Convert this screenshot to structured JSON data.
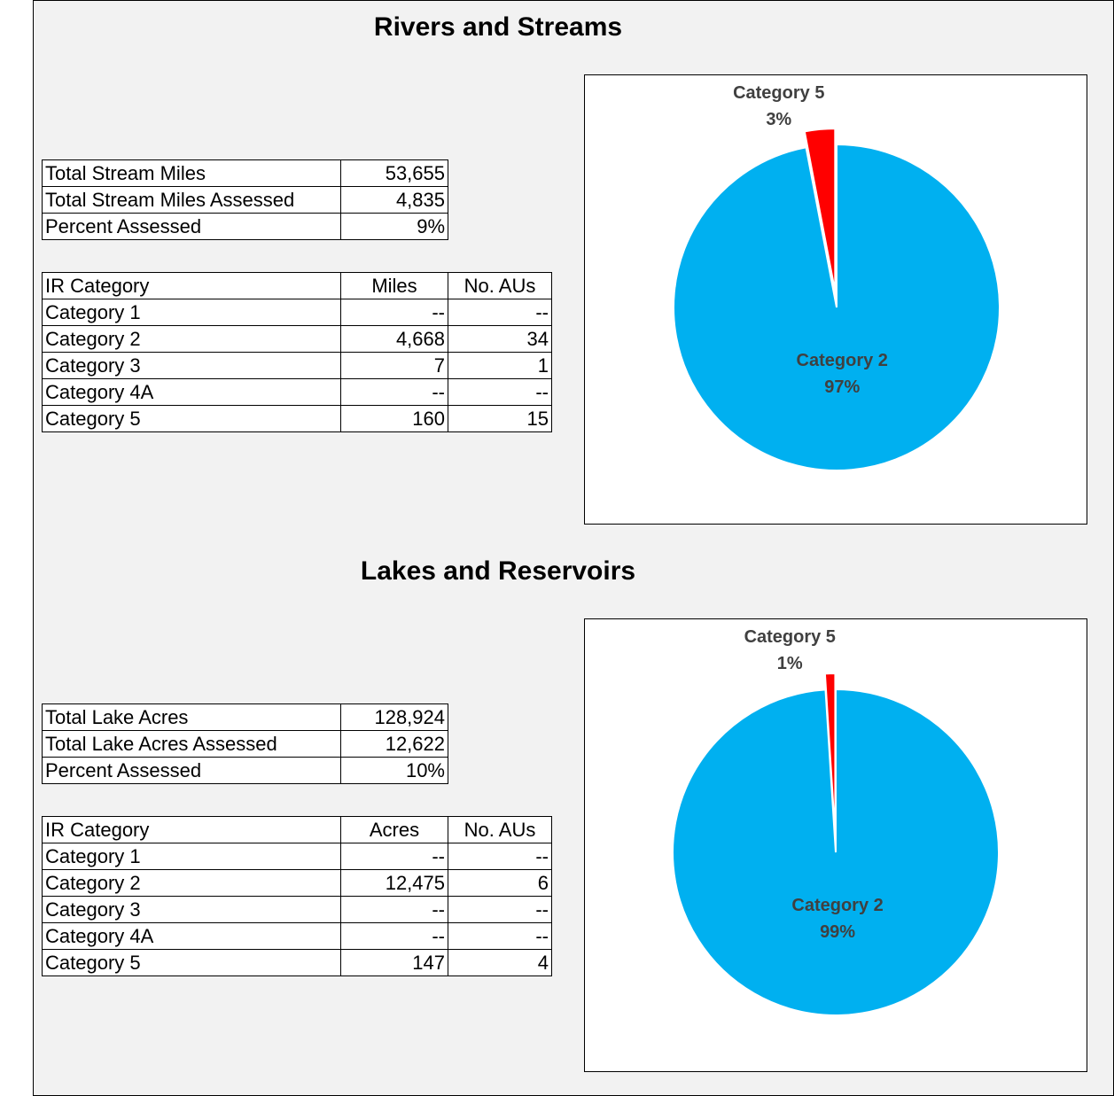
{
  "sections": [
    {
      "title": "Rivers and Streams",
      "summary": [
        [
          "Total Stream Miles",
          "53,655"
        ],
        [
          "Total Stream Miles Assessed",
          "4,835"
        ],
        [
          "Percent Assessed",
          "9%"
        ]
      ],
      "table": {
        "header": [
          "IR Category",
          "Miles",
          "No. AUs"
        ],
        "rows": [
          [
            "Category 1",
            "--",
            "--"
          ],
          [
            "Category 2",
            "4,668",
            "34"
          ],
          [
            "Category 3",
            "7",
            "1"
          ],
          [
            "Category 4A",
            "--",
            "--"
          ],
          [
            "Category 5",
            "160",
            "15"
          ]
        ]
      }
    },
    {
      "title": "Lakes and Reservoirs",
      "summary": [
        [
          "Total Lake Acres",
          "128,924"
        ],
        [
          "Total Lake Acres Assessed",
          "12,622"
        ],
        [
          "Percent Assessed",
          "10%"
        ]
      ],
      "table": {
        "header": [
          "IR Category",
          "Acres",
          "No. AUs"
        ],
        "rows": [
          [
            "Category 1",
            "--",
            "--"
          ],
          [
            "Category 2",
            "12,475",
            "6"
          ],
          [
            "Category 3",
            "--",
            "--"
          ],
          [
            "Category 4A",
            "--",
            "--"
          ],
          [
            "Category 5",
            "147",
            "4"
          ]
        ]
      }
    }
  ],
  "chart_data": [
    {
      "type": "pie",
      "categories": [
        "Category 2",
        "Category 5"
      ],
      "values": [
        97,
        3
      ],
      "value_labels": [
        "97%",
        "3%"
      ],
      "colors": [
        "#00b0f0",
        "#ff0000"
      ]
    },
    {
      "type": "pie",
      "categories": [
        "Category 2",
        "Category 5"
      ],
      "values": [
        99,
        1
      ],
      "value_labels": [
        "99%",
        "1%"
      ],
      "colors": [
        "#00b0f0",
        "#ff0000"
      ]
    }
  ]
}
